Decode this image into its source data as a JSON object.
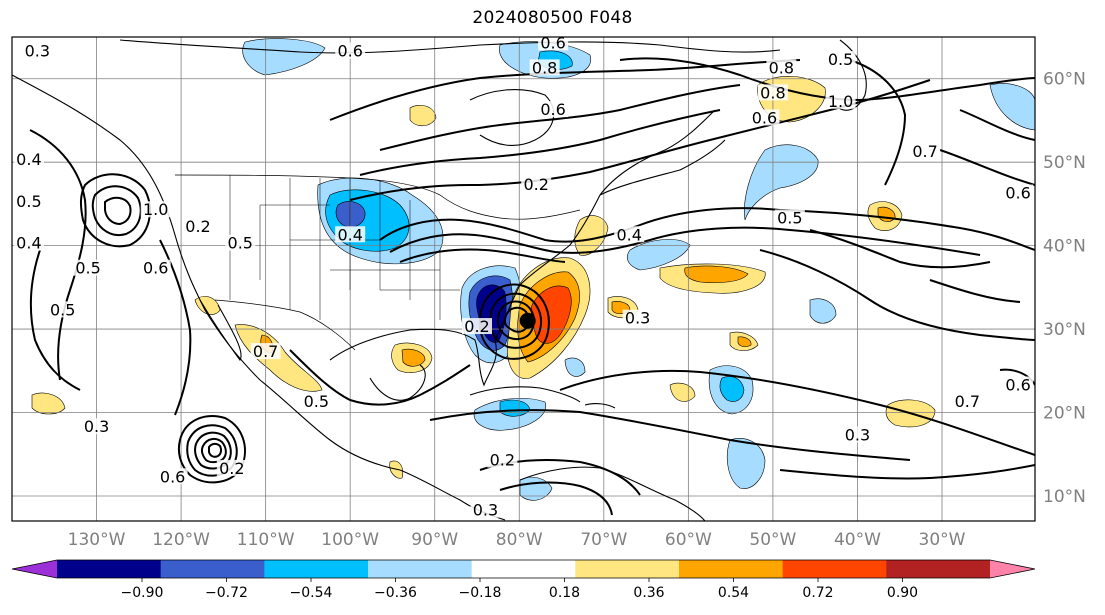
{
  "title": "2024080500 F048",
  "map": {
    "projection": "cylindrical",
    "lon_range": [
      -140,
      -19
    ],
    "lat_range": [
      7,
      65
    ],
    "gridlines": true,
    "lon_ticks": [
      "130°W",
      "120°W",
      "110°W",
      "100°W",
      "90°W",
      "80°W",
      "70°W",
      "60°W",
      "50°W",
      "40°W",
      "30°W"
    ],
    "lat_ticks": [
      "10°N",
      "20°N",
      "30°N",
      "40°N",
      "50°N",
      "60°N"
    ],
    "storm_center": {
      "lon": -79,
      "lat": 31,
      "icon": "storm-center-dot-icon"
    }
  },
  "contour_labels": [
    "0.3",
    "0.6",
    "0.6",
    "0.8",
    "0.6",
    "0.5",
    "1.0",
    "0.8",
    "0.6",
    "0.8",
    "0.4",
    "0.5",
    "1.0",
    "0.6",
    "0.5",
    "0.4",
    "0.2",
    "0.5",
    "0.4",
    "0.7",
    "0.5",
    "0.7",
    "0.6",
    "0.4",
    "0.3",
    "0.2",
    "0.2",
    "0.5",
    "0.6",
    "0.3",
    "0.2",
    "0.2",
    "0.3",
    "0.5",
    "0.6",
    "0.7",
    "0.3"
  ],
  "colorbar": {
    "levels": [
      "−0.90",
      "−0.72",
      "−0.54",
      "−0.36",
      "−0.18",
      "0.18",
      "0.36",
      "0.54",
      "0.72",
      "0.90"
    ],
    "colors": [
      "#9b30d9",
      "#00008b",
      "#3a5fcd",
      "#00bfff",
      "#a6dcff",
      "#ffffff",
      "#ffe680",
      "#ffa500",
      "#ff4500",
      "#b22222",
      "#ff82ab"
    ],
    "extend": "both"
  }
}
